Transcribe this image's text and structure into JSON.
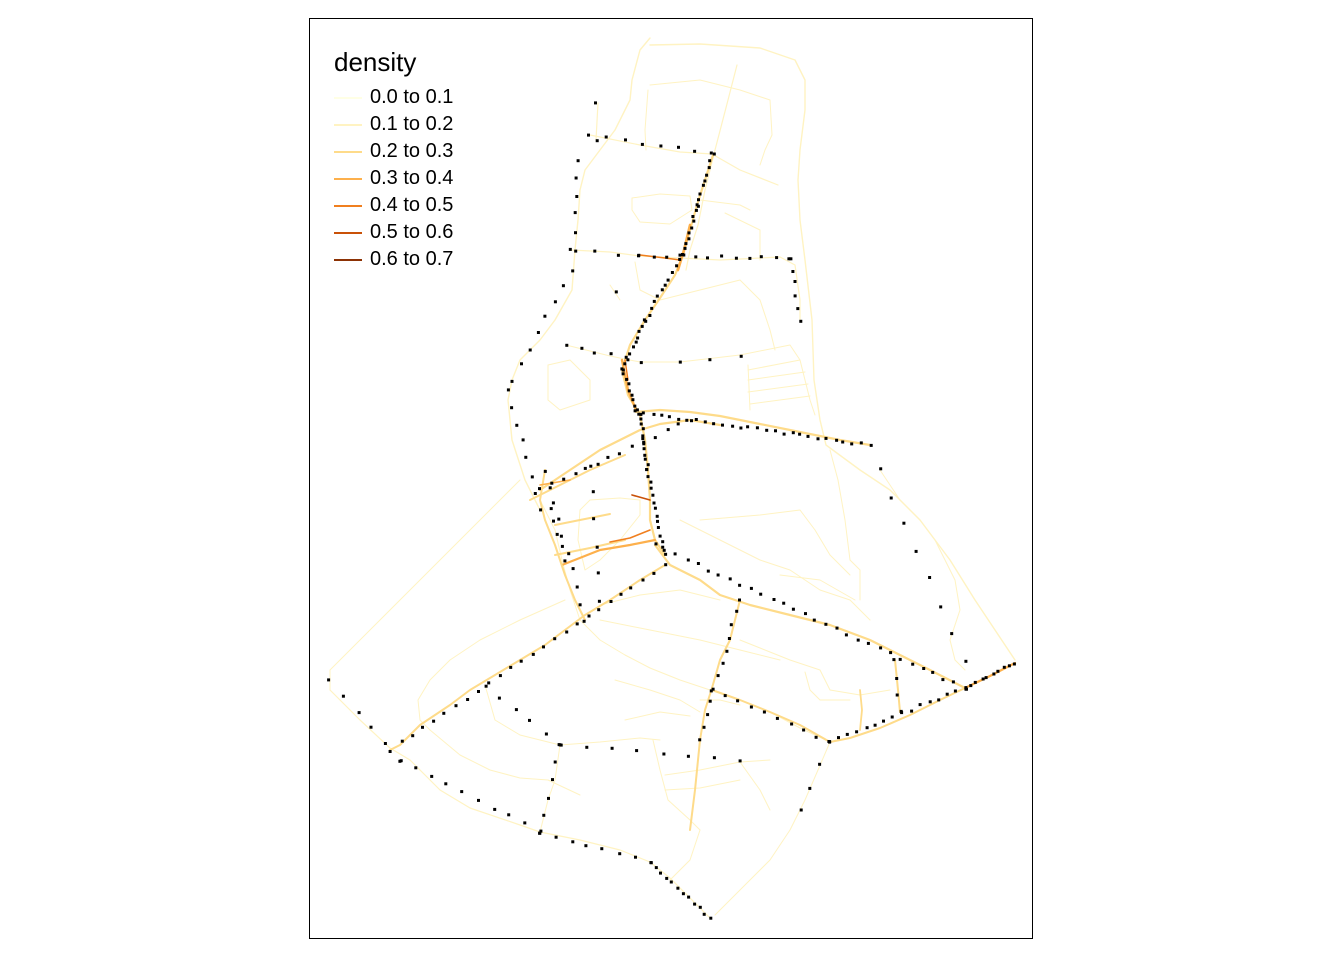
{
  "legend": {
    "title": "density",
    "items": [
      {
        "label": "0.0 to 0.1",
        "color": "#FFFFE5"
      },
      {
        "label": "0.1 to 0.2",
        "color": "#FFF3C2"
      },
      {
        "label": "0.2 to 0.3",
        "color": "#FEDB8A"
      },
      {
        "label": "0.3 to 0.4",
        "color": "#FDB04C"
      },
      {
        "label": "0.4 to 0.5",
        "color": "#F07F1F"
      },
      {
        "label": "0.5 to 0.6",
        "color": "#C95108"
      },
      {
        "label": "0.6 to 0.7",
        "color": "#8C3204"
      }
    ]
  },
  "colors": {
    "frame": "#000000",
    "points": "#000000"
  }
}
